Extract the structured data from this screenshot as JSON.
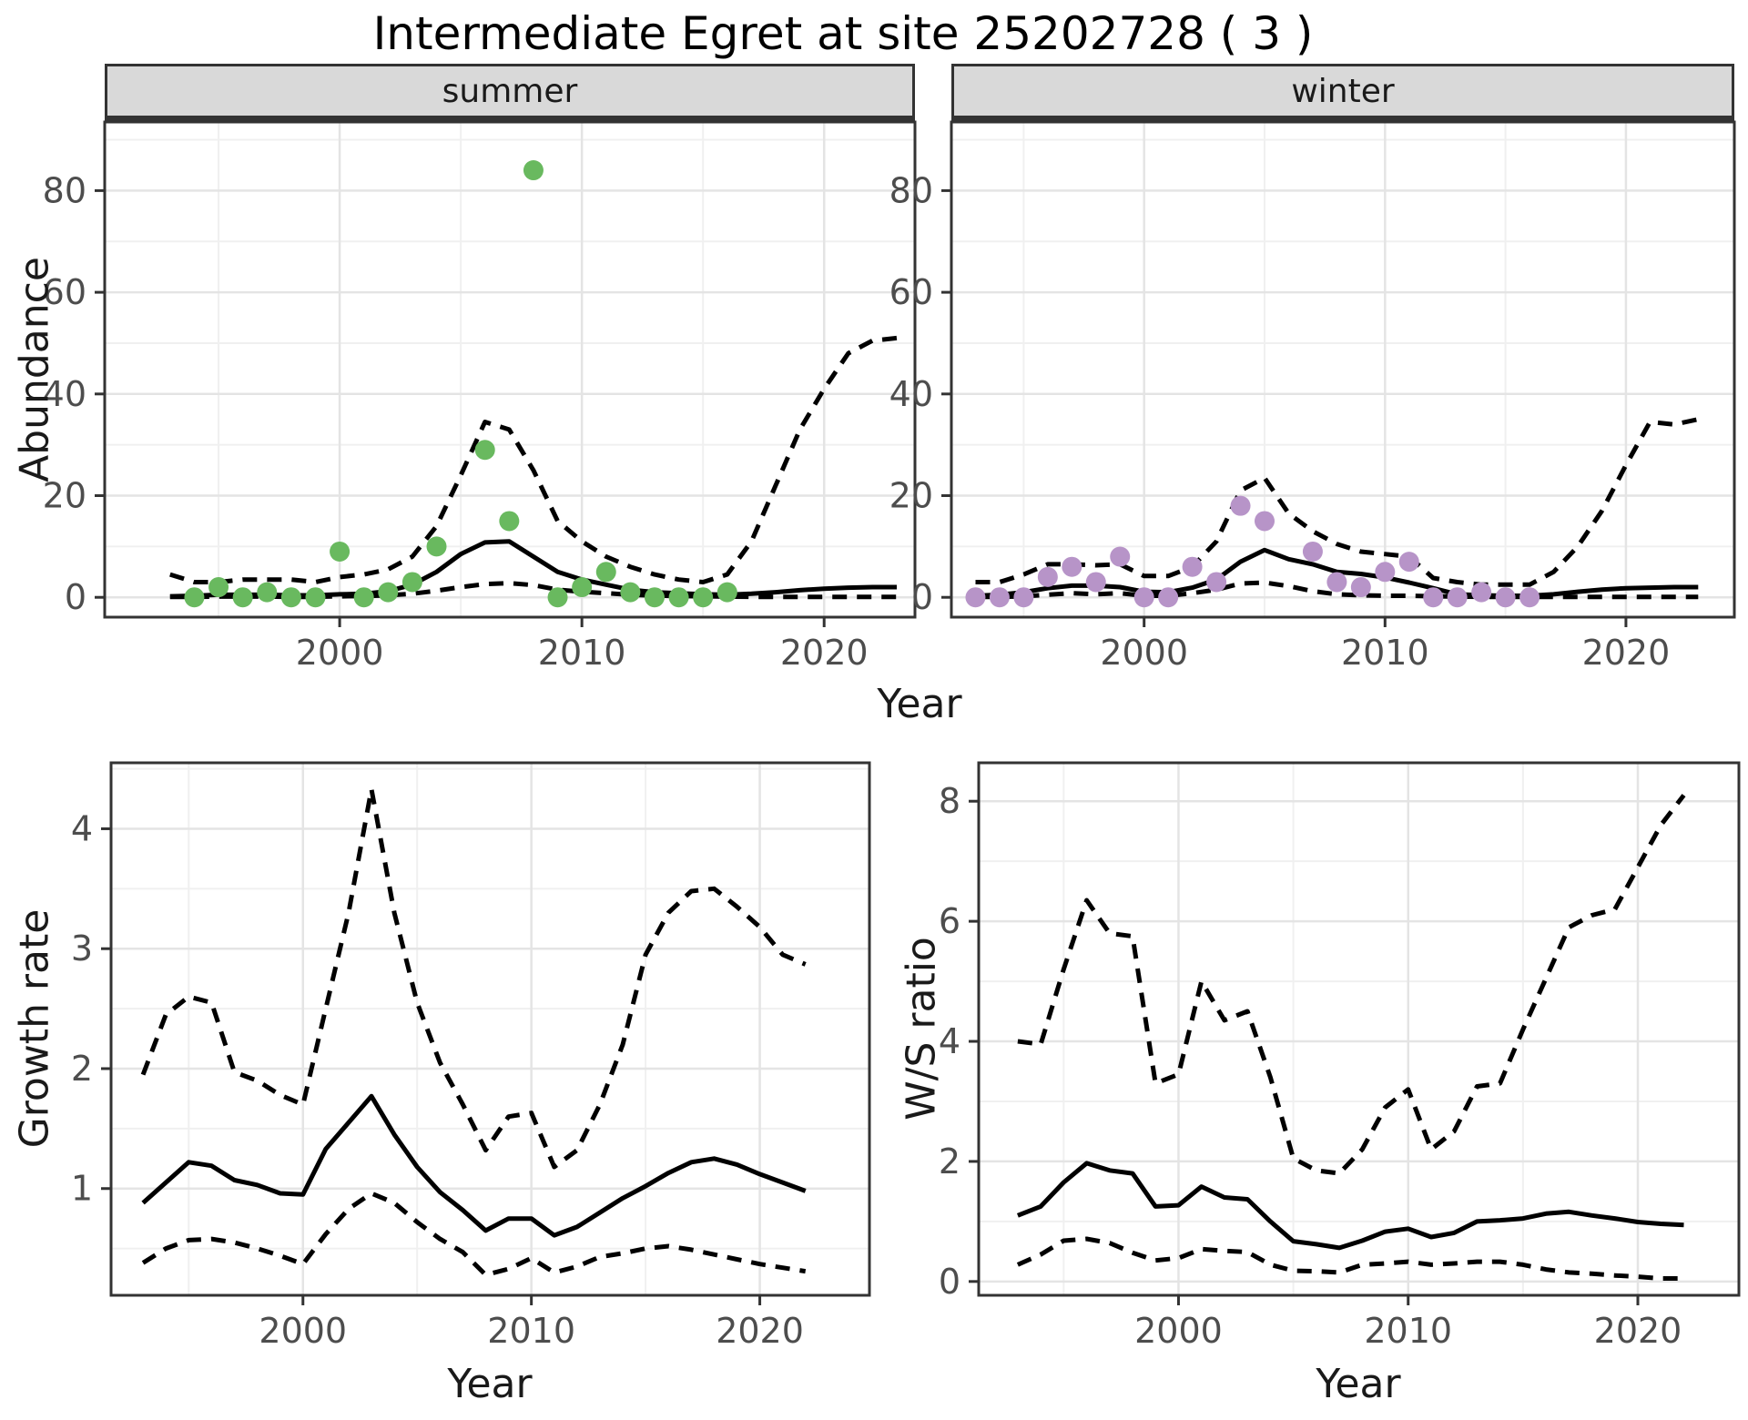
{
  "title": "Intermediate Egret at site 25202728 ( 3 )",
  "facets": {
    "summer": "summer",
    "winter": "winter"
  },
  "axis_labels": {
    "abundance": "Abundance",
    "growth": "Growth rate",
    "ws_ratio": "W/S ratio",
    "year_top": "Year",
    "year_bottom_left": "Year",
    "year_bottom_right": "Year"
  },
  "colors": {
    "summer_points": "#69b95f",
    "winter_points": "#b794c8",
    "line": "#000000",
    "strip_background": "#d9d9d9",
    "panel_border": "#333333",
    "grid_major": "#e4e4e4",
    "grid_minor": "#f0f0f0",
    "tick_label": "#4d4d4d",
    "text": "#1a1a1a"
  },
  "chart_data": [
    {
      "id": "abundance-summer",
      "type": "line",
      "facet": "summer",
      "ylabel": "Abundance",
      "xlabel": "Year",
      "x_range": [
        1990.3,
        2023.75
      ],
      "y_range": [
        -3.9,
        93.5
      ],
      "x_ticks": [
        2000,
        2010,
        2020
      ],
      "x_minor": [
        1995,
        2005,
        2015
      ],
      "y_ticks": [
        0,
        20,
        40,
        60,
        80
      ],
      "y_minor": [
        10,
        30,
        50,
        70,
        90
      ],
      "years": [
        1993,
        1994,
        1995,
        1996,
        1997,
        1998,
        1999,
        2000,
        2001,
        2002,
        2003,
        2004,
        2005,
        2006,
        2007,
        2008,
        2009,
        2010,
        2011,
        2012,
        2013,
        2014,
        2015,
        2016,
        2017,
        2018,
        2019,
        2020,
        2021,
        2022,
        2023
      ],
      "series": [
        {
          "name": "fit",
          "style": "solid",
          "values": [
            0.2,
            0.3,
            0.5,
            0.5,
            0.5,
            0.4,
            0.4,
            0.6,
            0.7,
            1.2,
            2.5,
            5.0,
            8.5,
            10.8,
            11.0,
            8.0,
            5.0,
            3.5,
            2.5,
            1.5,
            1.0,
            0.8,
            0.6,
            0.5,
            0.7,
            1.0,
            1.4,
            1.7,
            1.9,
            2.0,
            2.0
          ]
        },
        {
          "name": "upper-ci",
          "style": "dashed",
          "values": [
            4.5,
            3.0,
            3.0,
            3.5,
            3.5,
            3.5,
            3.0,
            4.0,
            4.5,
            5.5,
            8.0,
            14.0,
            24.0,
            34.5,
            33.0,
            25.0,
            15.0,
            11.0,
            8.0,
            6.0,
            4.5,
            3.5,
            3.0,
            4.5,
            11.0,
            22.0,
            33.0,
            41.0,
            48.0,
            50.5,
            51.0
          ]
        },
        {
          "name": "lower-ci",
          "style": "dashed",
          "values": [
            0.1,
            0.1,
            0.15,
            0.15,
            0.15,
            0.1,
            0.1,
            0.2,
            0.25,
            0.4,
            0.7,
            1.3,
            2.0,
            2.6,
            2.8,
            2.4,
            1.5,
            1.1,
            0.8,
            0.5,
            0.35,
            0.25,
            0.2,
            0.15,
            0.1,
            0.1,
            0.1,
            0.1,
            0.1,
            0.1,
            0.1
          ]
        }
      ],
      "points": {
        "color": "#69b95f",
        "years": [
          1994,
          1995,
          1996,
          1997,
          1998,
          1999,
          2000,
          2001,
          2002,
          2003,
          2004,
          2006,
          2007,
          2008,
          2009,
          2010,
          2011,
          2012,
          2013,
          2014,
          2015,
          2016
        ],
        "values": [
          0,
          2,
          0,
          1,
          0,
          0,
          9,
          0,
          1,
          3,
          10,
          29,
          15,
          84,
          0,
          2,
          5,
          1,
          0,
          0,
          0,
          1
        ]
      }
    },
    {
      "id": "abundance-winter",
      "type": "line",
      "facet": "winter",
      "ylabel": "Abundance",
      "xlabel": "Year",
      "x_range": [
        1992.0,
        2024.5
      ],
      "y_range": [
        -3.9,
        93.5
      ],
      "x_ticks": [
        2000,
        2010,
        2020
      ],
      "x_minor": [
        1995,
        2005,
        2015
      ],
      "y_ticks": [
        0,
        20,
        40,
        60,
        80
      ],
      "y_minor": [
        10,
        30,
        50,
        70,
        90
      ],
      "years": [
        1993,
        1994,
        1995,
        1996,
        1997,
        1998,
        1999,
        2000,
        2001,
        2002,
        2003,
        2004,
        2005,
        2006,
        2007,
        2008,
        2009,
        2010,
        2011,
        2012,
        2013,
        2014,
        2015,
        2016,
        2017,
        2018,
        2019,
        2020,
        2021,
        2022,
        2023
      ],
      "series": [
        {
          "name": "fit",
          "style": "solid",
          "values": [
            0.3,
            0.5,
            1.0,
            1.8,
            2.3,
            2.3,
            2.0,
            1.1,
            1.0,
            1.9,
            3.5,
            7.0,
            9.3,
            7.5,
            6.5,
            5.0,
            4.6,
            3.9,
            2.9,
            1.8,
            0.6,
            0.4,
            0.3,
            0.3,
            0.6,
            1.1,
            1.5,
            1.8,
            1.9,
            2.0,
            2.0
          ]
        },
        {
          "name": "upper-ci",
          "style": "dashed",
          "values": [
            3.0,
            3.0,
            4.5,
            6.5,
            6.5,
            6.3,
            6.5,
            4.2,
            4.2,
            6.0,
            11.0,
            21.0,
            23.5,
            16.5,
            13.0,
            10.5,
            9.0,
            8.5,
            8.0,
            3.8,
            3.0,
            2.5,
            2.5,
            2.5,
            5.0,
            10.0,
            17.0,
            26.0,
            34.5,
            34.0,
            35.0
          ]
        },
        {
          "name": "lower-ci",
          "style": "dashed",
          "values": [
            0.1,
            0.1,
            0.2,
            0.5,
            0.8,
            0.6,
            0.8,
            0.3,
            0.3,
            0.8,
            1.5,
            2.7,
            2.9,
            2.2,
            1.2,
            0.6,
            0.4,
            0.3,
            0.3,
            0.2,
            0.15,
            0.1,
            0.1,
            0.1,
            0.1,
            0.1,
            0.1,
            0.1,
            0.1,
            0.1,
            0.1
          ]
        }
      ],
      "points": {
        "color": "#b794c8",
        "years": [
          1993,
          1994,
          1995,
          1996,
          1997,
          1998,
          1999,
          2000,
          2001,
          2002,
          2003,
          2004,
          2005,
          2007,
          2008,
          2009,
          2010,
          2011,
          2012,
          2013,
          2014,
          2015,
          2016
        ],
        "values": [
          0,
          0,
          0,
          4,
          6,
          3,
          8,
          0,
          0,
          6,
          3,
          18,
          15,
          9,
          3,
          2,
          5,
          7,
          0,
          0,
          1,
          0,
          0
        ]
      }
    },
    {
      "id": "growth-rate",
      "type": "line",
      "facet": null,
      "ylabel": "Growth rate",
      "xlabel": "Year",
      "x_range": [
        1991.6,
        2024.8
      ],
      "y_range": [
        0.11,
        4.55
      ],
      "x_ticks": [
        2000,
        2010,
        2020
      ],
      "x_minor": [
        1995,
        2005,
        2015
      ],
      "y_ticks": [
        1,
        2,
        3,
        4
      ],
      "y_minor": [
        0.5,
        1.5,
        2.5,
        3.5,
        4.5
      ],
      "years": [
        1993,
        1994,
        1995,
        1996,
        1997,
        1998,
        1999,
        2000,
        2001,
        2002,
        2003,
        2004,
        2005,
        2006,
        2007,
        2008,
        2009,
        2010,
        2011,
        2012,
        2013,
        2014,
        2015,
        2016,
        2017,
        2018,
        2019,
        2020,
        2021,
        2022
      ],
      "series": [
        {
          "name": "fit",
          "style": "solid",
          "values": [
            0.88,
            1.05,
            1.22,
            1.19,
            1.07,
            1.03,
            0.96,
            0.95,
            1.33,
            1.55,
            1.77,
            1.45,
            1.18,
            0.97,
            0.82,
            0.65,
            0.75,
            0.75,
            0.61,
            0.68,
            0.8,
            0.92,
            1.02,
            1.13,
            1.22,
            1.25,
            1.2,
            1.12,
            1.05,
            0.98
          ]
        },
        {
          "name": "upper-ci",
          "style": "dashed",
          "values": [
            1.95,
            2.45,
            2.6,
            2.55,
            1.97,
            1.9,
            1.78,
            1.7,
            2.5,
            3.3,
            4.33,
            3.3,
            2.55,
            2.05,
            1.7,
            1.32,
            1.6,
            1.63,
            1.18,
            1.32,
            1.7,
            2.2,
            2.95,
            3.3,
            3.48,
            3.5,
            3.35,
            3.18,
            2.95,
            2.87
          ]
        },
        {
          "name": "lower-ci",
          "style": "dashed",
          "values": [
            0.38,
            0.5,
            0.57,
            0.58,
            0.55,
            0.5,
            0.44,
            0.37,
            0.62,
            0.83,
            0.96,
            0.88,
            0.72,
            0.58,
            0.47,
            0.28,
            0.33,
            0.42,
            0.3,
            0.35,
            0.43,
            0.46,
            0.5,
            0.52,
            0.49,
            0.45,
            0.41,
            0.37,
            0.34,
            0.31
          ]
        }
      ],
      "points": null
    },
    {
      "id": "ws-ratio",
      "type": "line",
      "facet": null,
      "ylabel": "W/S ratio",
      "xlabel": "Year",
      "x_range": [
        1991.3,
        2024.4
      ],
      "y_range": [
        -0.23,
        8.64
      ],
      "x_ticks": [
        2000,
        2010,
        2020
      ],
      "x_minor": [
        1995,
        2005,
        2015
      ],
      "y_ticks": [
        0,
        2,
        4,
        6,
        8
      ],
      "y_minor": [
        1,
        3,
        5,
        7
      ],
      "years": [
        1993,
        1994,
        1995,
        1996,
        1997,
        1998,
        1999,
        2000,
        2001,
        2002,
        2003,
        2004,
        2005,
        2006,
        2007,
        2008,
        2009,
        2010,
        2011,
        2012,
        2013,
        2014,
        2015,
        2016,
        2017,
        2018,
        2019,
        2020,
        2021,
        2022
      ],
      "series": [
        {
          "name": "fit",
          "style": "solid",
          "values": [
            1.1,
            1.25,
            1.65,
            1.97,
            1.85,
            1.8,
            1.25,
            1.27,
            1.58,
            1.4,
            1.37,
            1.0,
            0.67,
            0.62,
            0.56,
            0.68,
            0.83,
            0.88,
            0.74,
            0.81,
            1.0,
            1.02,
            1.05,
            1.13,
            1.16,
            1.1,
            1.05,
            0.99,
            0.96,
            0.94
          ]
        },
        {
          "name": "upper-ci",
          "style": "dashed",
          "values": [
            4.0,
            3.95,
            5.2,
            6.35,
            5.8,
            5.75,
            3.3,
            3.45,
            5.0,
            4.35,
            4.5,
            3.4,
            2.05,
            1.85,
            1.8,
            2.2,
            2.9,
            3.2,
            2.2,
            2.5,
            3.25,
            3.3,
            4.2,
            5.05,
            5.9,
            6.1,
            6.2,
            6.9,
            7.6,
            8.1
          ]
        },
        {
          "name": "lower-ci",
          "style": "dashed",
          "values": [
            0.28,
            0.45,
            0.68,
            0.71,
            0.64,
            0.48,
            0.35,
            0.39,
            0.54,
            0.51,
            0.49,
            0.28,
            0.18,
            0.17,
            0.15,
            0.28,
            0.3,
            0.33,
            0.28,
            0.3,
            0.33,
            0.33,
            0.28,
            0.2,
            0.15,
            0.13,
            0.1,
            0.08,
            0.05,
            0.05
          ]
        }
      ],
      "points": null
    }
  ]
}
